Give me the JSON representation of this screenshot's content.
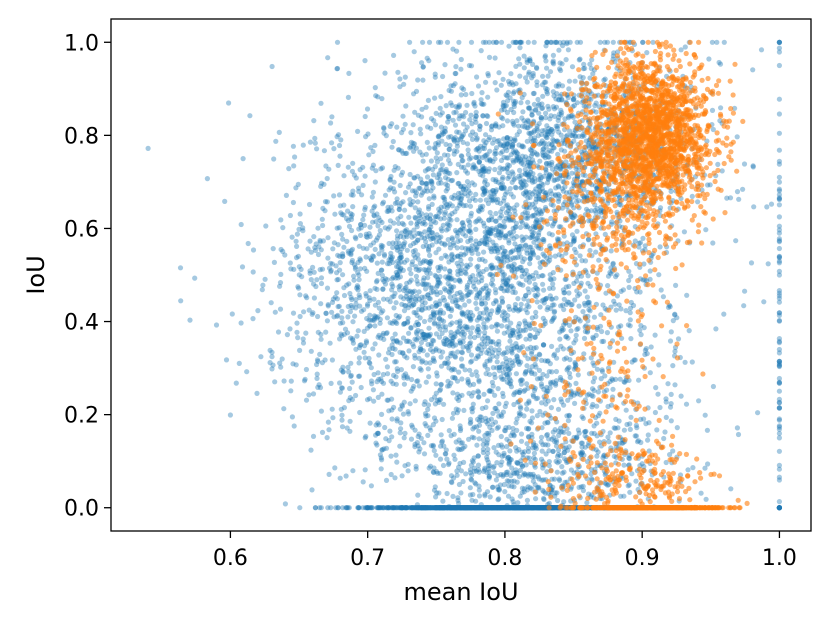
{
  "chart_data": {
    "type": "scatter",
    "title": "",
    "xlabel": "mean IoU",
    "ylabel": "IoU",
    "xlim": [
      0.513,
      1.023
    ],
    "ylim": [
      -0.05,
      1.05
    ],
    "x_ticks": [
      "0.6",
      "0.7",
      "0.8",
      "0.9",
      "1.0"
    ],
    "y_ticks": [
      "0.0",
      "0.2",
      "0.4",
      "0.6",
      "0.8",
      "1.0"
    ],
    "grid": false,
    "legend": "none",
    "series": [
      {
        "color": "#1f77b4",
        "alpha": 0.4,
        "clusters": [
          {
            "x_mean": 0.79,
            "x_sd": 0.065,
            "y_mean": 0.45,
            "y_sd": 0.22,
            "count": 2600
          },
          {
            "x_mean": 0.84,
            "x_sd": 0.05,
            "y_mean": 0.78,
            "y_sd": 0.11,
            "count": 1300
          },
          {
            "x_mean": 0.72,
            "x_sd": 0.05,
            "y_mean": 0.5,
            "y_sd": 0.15,
            "count": 600
          },
          {
            "x_mean": 0.8,
            "x_sd": 0.045,
            "y_mean": 0.0,
            "y_sd": 0.0,
            "count": 1400
          },
          {
            "x_mean": 0.82,
            "x_sd": 0.05,
            "y_mean": 0.1,
            "y_sd": 0.06,
            "count": 500
          },
          {
            "x_mean": 1.0,
            "x_sd": 0.0,
            "y_mean": 0.4,
            "y_sd": 0.35,
            "count": 90
          }
        ]
      },
      {
        "color": "#ff7f0e",
        "alpha": 0.6,
        "clusters": [
          {
            "x_mean": 0.905,
            "x_sd": 0.022,
            "y_mean": 0.8,
            "y_sd": 0.08,
            "count": 1800
          },
          {
            "x_mean": 0.88,
            "x_sd": 0.03,
            "y_mean": 0.65,
            "y_sd": 0.1,
            "count": 300
          },
          {
            "x_mean": 0.87,
            "x_sd": 0.03,
            "y_mean": 0.3,
            "y_sd": 0.15,
            "count": 150
          },
          {
            "x_mean": 0.905,
            "x_sd": 0.025,
            "y_mean": 0.0,
            "y_sd": 0.0,
            "count": 500
          },
          {
            "x_mean": 0.895,
            "x_sd": 0.03,
            "y_mean": 0.06,
            "y_sd": 0.04,
            "count": 200
          }
        ]
      }
    ]
  }
}
